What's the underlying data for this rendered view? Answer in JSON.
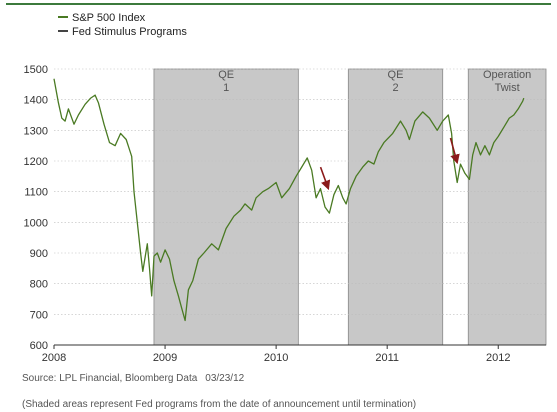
{
  "chart_data": {
    "type": "line",
    "title": "",
    "xlabel": "",
    "ylabel": "",
    "ylim": [
      600,
      1500
    ],
    "yticks": [
      600,
      700,
      800,
      900,
      1000,
      1100,
      1200,
      1300,
      1400,
      1500
    ],
    "xlim": [
      2008.0,
      2012.43
    ],
    "xticks": [
      {
        "value": 2008,
        "label": "2008"
      },
      {
        "value": 2009,
        "label": "2009"
      },
      {
        "value": 2010,
        "label": "2010"
      },
      {
        "value": 2011,
        "label": "2011"
      },
      {
        "value": 2012,
        "label": "2012"
      }
    ],
    "grid": true,
    "legend": {
      "placement": "top-left"
    },
    "series": [
      {
        "name": "S&P 500 Index",
        "color": "#4a7a23",
        "points": [
          [
            2008.0,
            1468
          ],
          [
            2008.04,
            1390
          ],
          [
            2008.07,
            1340
          ],
          [
            2008.1,
            1330
          ],
          [
            2008.13,
            1370
          ],
          [
            2008.18,
            1320
          ],
          [
            2008.22,
            1350
          ],
          [
            2008.28,
            1385
          ],
          [
            2008.33,
            1405
          ],
          [
            2008.37,
            1415
          ],
          [
            2008.4,
            1390
          ],
          [
            2008.45,
            1320
          ],
          [
            2008.5,
            1260
          ],
          [
            2008.55,
            1250
          ],
          [
            2008.6,
            1290
          ],
          [
            2008.65,
            1270
          ],
          [
            2008.7,
            1215
          ],
          [
            2008.72,
            1100
          ],
          [
            2008.75,
            1000
          ],
          [
            2008.78,
            900
          ],
          [
            2008.8,
            840
          ],
          [
            2008.84,
            930
          ],
          [
            2008.86,
            850
          ],
          [
            2008.88,
            760
          ],
          [
            2008.9,
            890
          ],
          [
            2008.93,
            900
          ],
          [
            2008.96,
            870
          ],
          [
            2009.0,
            910
          ],
          [
            2009.04,
            880
          ],
          [
            2009.08,
            810
          ],
          [
            2009.12,
            760
          ],
          [
            2009.15,
            720
          ],
          [
            2009.18,
            680
          ],
          [
            2009.21,
            780
          ],
          [
            2009.25,
            810
          ],
          [
            2009.3,
            880
          ],
          [
            2009.35,
            900
          ],
          [
            2009.42,
            930
          ],
          [
            2009.48,
            910
          ],
          [
            2009.55,
            980
          ],
          [
            2009.62,
            1020
          ],
          [
            2009.68,
            1040
          ],
          [
            2009.72,
            1060
          ],
          [
            2009.78,
            1040
          ],
          [
            2009.82,
            1080
          ],
          [
            2009.88,
            1100
          ],
          [
            2009.93,
            1110
          ],
          [
            2010.0,
            1130
          ],
          [
            2010.05,
            1080
          ],
          [
            2010.12,
            1110
          ],
          [
            2010.18,
            1150
          ],
          [
            2010.23,
            1180
          ],
          [
            2010.28,
            1210
          ],
          [
            2010.32,
            1170
          ],
          [
            2010.36,
            1080
          ],
          [
            2010.4,
            1110
          ],
          [
            2010.44,
            1050
          ],
          [
            2010.48,
            1030
          ],
          [
            2010.52,
            1090
          ],
          [
            2010.56,
            1120
          ],
          [
            2010.6,
            1080
          ],
          [
            2010.63,
            1060
          ],
          [
            2010.67,
            1110
          ],
          [
            2010.72,
            1150
          ],
          [
            2010.78,
            1180
          ],
          [
            2010.83,
            1200
          ],
          [
            2010.88,
            1190
          ],
          [
            2010.92,
            1230
          ],
          [
            2010.97,
            1260
          ],
          [
            2011.05,
            1290
          ],
          [
            2011.12,
            1330
          ],
          [
            2011.17,
            1300
          ],
          [
            2011.2,
            1270
          ],
          [
            2011.25,
            1330
          ],
          [
            2011.32,
            1360
          ],
          [
            2011.38,
            1340
          ],
          [
            2011.45,
            1300
          ],
          [
            2011.5,
            1330
          ],
          [
            2011.55,
            1350
          ],
          [
            2011.58,
            1290
          ],
          [
            2011.6,
            1200
          ],
          [
            2011.63,
            1130
          ],
          [
            2011.66,
            1190
          ],
          [
            2011.7,
            1160
          ],
          [
            2011.74,
            1140
          ],
          [
            2011.77,
            1220
          ],
          [
            2011.8,
            1260
          ],
          [
            2011.84,
            1220
          ],
          [
            2011.88,
            1250
          ],
          [
            2011.92,
            1220
          ],
          [
            2011.96,
            1260
          ],
          [
            2012.0,
            1280
          ],
          [
            2012.05,
            1310
          ],
          [
            2012.1,
            1340
          ],
          [
            2012.14,
            1350
          ],
          [
            2012.18,
            1370
          ],
          [
            2012.22,
            1395
          ],
          [
            2012.23,
            1405
          ]
        ]
      },
      {
        "name": "Fed Stimulus Programs",
        "color": "#444444"
      }
    ],
    "shaded_periods": [
      {
        "label": [
          "QE",
          "1"
        ],
        "start": 2008.9,
        "end": 2010.2,
        "fill": "#c8c8c8"
      },
      {
        "label": [
          "QE",
          "2"
        ],
        "start": 2010.65,
        "end": 2011.5,
        "fill": "#c8c8c8"
      },
      {
        "label": [
          "Operation",
          "Twist"
        ],
        "start": 2011.73,
        "end": 2012.43,
        "fill": "#c8c8c8"
      }
    ],
    "arrows": [
      {
        "from": [
          2010.4,
          1180
        ],
        "to": [
          2010.47,
          1110
        ],
        "color": "#8b1a1a"
      },
      {
        "from": [
          2011.57,
          1275
        ],
        "to": [
          2011.63,
          1195
        ],
        "color": "#8b1a1a"
      }
    ]
  },
  "footer": {
    "source": "Source: LPL Financial, Bloomberg Data",
    "date": "03/23/12",
    "note": "(Shaded areas represent Fed programs from the date of announcement until termination)"
  }
}
